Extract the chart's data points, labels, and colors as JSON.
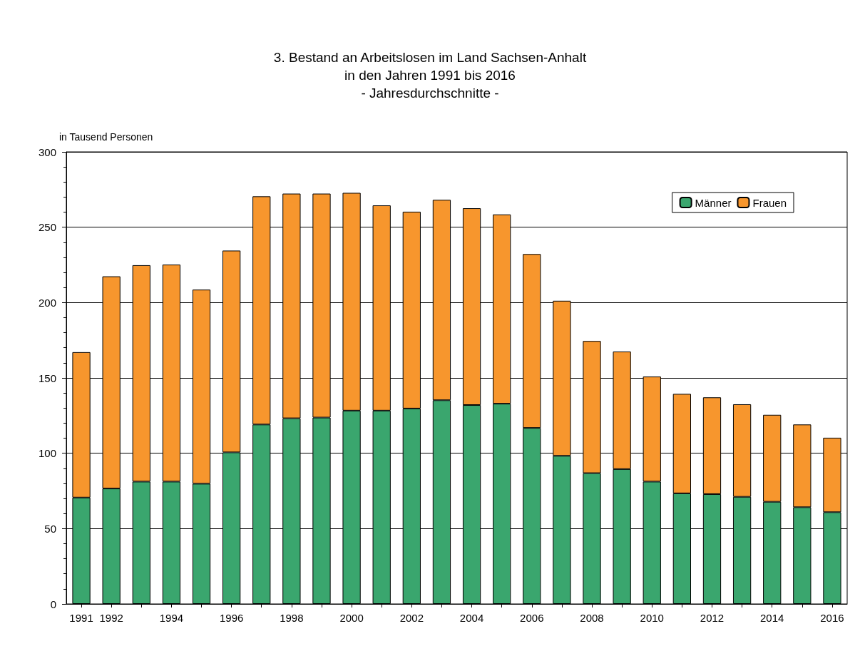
{
  "chart_data": {
    "type": "bar",
    "title": "3. Bestand an Arbeitslosen im Land Sachsen-Anhalt\nin den Jahren 1991 bis 2016\n- Jahresdurchschnitte -",
    "ylabel": "in Tausend Personen",
    "categories": [
      "1991",
      "1992",
      null,
      "1994",
      null,
      "1996",
      null,
      "1998",
      null,
      "2000",
      null,
      "2002",
      null,
      "2004",
      null,
      "2006",
      null,
      "2008",
      null,
      "2010",
      null,
      "2012",
      null,
      "2014",
      null,
      "2016"
    ],
    "stacked": true,
    "series": [
      {
        "name": "Männer",
        "color": "#3aa66e",
        "values": [
          70.6,
          76.6,
          81.2,
          81.2,
          79.8,
          100.6,
          119.1,
          123.2,
          123.7,
          128.3,
          128.3,
          129.7,
          135.2,
          132.0,
          132.9,
          116.8,
          98.3,
          86.8,
          89.5,
          81.2,
          73.4,
          72.9,
          71.1,
          67.8,
          64.2,
          60.9
        ]
      },
      {
        "name": "Frauen",
        "color": "#f7962d",
        "values": [
          96.5,
          140.8,
          143.6,
          144.0,
          128.8,
          133.9,
          151.4,
          149.1,
          148.6,
          144.5,
          136.2,
          130.6,
          133.0,
          130.6,
          125.6,
          115.4,
          102.9,
          87.7,
          78.0,
          69.7,
          66.0,
          64.2,
          61.4,
          57.7,
          54.9,
          49.4
        ]
      }
    ],
    "ylim": [
      0,
      300
    ],
    "yticks": [
      0,
      50,
      100,
      150,
      200,
      250,
      300
    ],
    "grid": "y",
    "legend": "top right"
  }
}
